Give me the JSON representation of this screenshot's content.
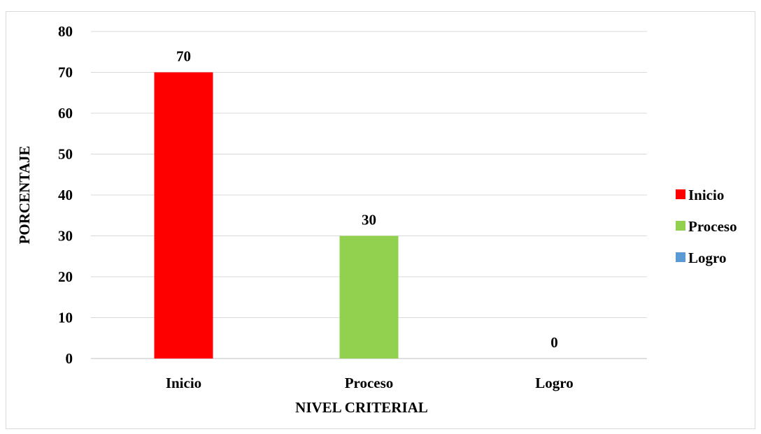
{
  "chart_data": {
    "type": "bar",
    "categories": [
      "Inicio",
      "Proceso",
      "Logro"
    ],
    "values": [
      70,
      30,
      0
    ],
    "colors": [
      "#ff0000",
      "#92d050",
      "#5b9bd5"
    ],
    "data_labels": [
      "70",
      "30",
      "0"
    ],
    "xlabel": "NIVEL CRITERIAL",
    "ylabel": "PORCENTAJE",
    "ylim": [
      0,
      80
    ],
    "yticks": [
      0,
      10,
      20,
      30,
      40,
      50,
      60,
      70,
      80
    ],
    "grid": true,
    "legend_position": "right",
    "legend": [
      "Inicio",
      "Proceso",
      "Logro"
    ]
  }
}
